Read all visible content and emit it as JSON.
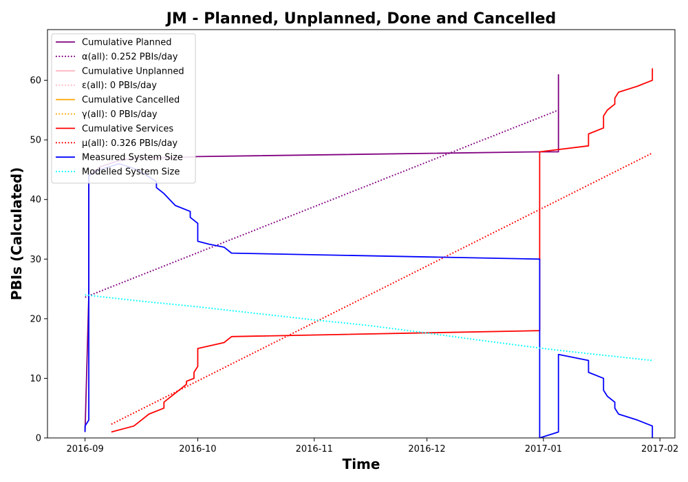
{
  "chart_data": {
    "type": "line",
    "title": "JM - Planned, Unplanned, Done  and Cancelled",
    "xlabel": "Time",
    "ylabel": "PBIs (Calculated)",
    "xlim": [
      "2016-08-22",
      "2017-02-05"
    ],
    "ylim": [
      0,
      68.5
    ],
    "x_ticks": [
      "2016-09-01",
      "2016-10-01",
      "2016-11-01",
      "2016-12-01",
      "2017-01-01",
      "2017-02-01"
    ],
    "x_tick_labels": [
      "2016-09",
      "2016-10",
      "2016-11",
      "2016-12",
      "2017-01",
      "2017-02"
    ],
    "y_ticks": [
      0,
      10,
      20,
      30,
      40,
      50,
      60
    ],
    "grid": false,
    "legend_position": "top-left",
    "series": [
      {
        "name": "Cumulative Planned",
        "color": "#800080",
        "style": "solid",
        "x": [
          "2016-09-01",
          "2016-09-02",
          "2016-09-02",
          "2016-09-05",
          "2016-09-10",
          "2016-09-15",
          "2016-09-20",
          "2016-09-25",
          "2016-10-01",
          "2016-12-31",
          "2017-01-05",
          "2017-01-05",
          "2017-01-05"
        ],
        "y": [
          1,
          24,
          44,
          45.5,
          46.5,
          47,
          47,
          47,
          47.2,
          48,
          48,
          48,
          61
        ]
      },
      {
        "name": "α(all): 0.252 PBIs/day",
        "color": "#800080",
        "style": "dotted",
        "x": [
          "2016-09-01",
          "2017-01-05"
        ],
        "y": [
          23.6,
          55
        ]
      },
      {
        "name": "Cumulative Unplanned",
        "color": "#ffb6c1",
        "style": "solid",
        "x": [],
        "y": []
      },
      {
        "name": "ε(all): 0 PBIs/day",
        "color": "#ffb6c1",
        "style": "dotted",
        "x": [],
        "y": []
      },
      {
        "name": "Cumulative Cancelled",
        "color": "#ffa500",
        "style": "solid",
        "x": [],
        "y": []
      },
      {
        "name": "γ(all): 0 PBIs/day",
        "color": "#ffa500",
        "style": "dotted",
        "x": [],
        "y": []
      },
      {
        "name": "Cumulative Services",
        "color": "#ff0000",
        "style": "solid",
        "x": [
          "2016-09-08",
          "2016-09-14",
          "2016-09-16",
          "2016-09-18",
          "2016-09-22",
          "2016-09-22",
          "2016-09-23",
          "2016-09-28",
          "2016-09-28",
          "2016-09-30",
          "2016-09-30",
          "2016-10-01",
          "2016-10-01",
          "2016-10-08",
          "2016-10-10",
          "2016-12-31",
          "2016-12-31",
          "2016-12-31",
          "2017-01-13",
          "2017-01-13",
          "2017-01-17",
          "2017-01-17",
          "2017-01-18",
          "2017-01-20",
          "2017-01-20",
          "2017-01-21",
          "2017-01-26",
          "2017-01-30",
          "2017-01-30"
        ],
        "y": [
          1,
          2,
          3,
          4,
          5,
          6,
          6.5,
          9,
          9.5,
          10,
          11,
          12,
          15,
          16,
          17,
          18,
          31,
          48,
          49,
          51,
          52,
          54,
          55,
          56,
          57,
          58,
          59,
          60,
          62
        ]
      },
      {
        "name": "μ(all): 0.326 PBIs/day",
        "color": "#ff0000",
        "style": "dotted",
        "x": [
          "2016-09-08",
          "2017-01-30"
        ],
        "y": [
          2.3,
          47.8
        ]
      },
      {
        "name": "Measured System Size",
        "color": "#0000ff",
        "style": "solid",
        "x": [
          "2016-09-01",
          "2016-09-01",
          "2016-09-02",
          "2016-09-02",
          "2016-09-02",
          "2016-09-02",
          "2016-09-02",
          "2016-09-05",
          "2016-09-10",
          "2016-09-15",
          "2016-09-20",
          "2016-09-20",
          "2016-09-22",
          "2016-09-25",
          "2016-09-29",
          "2016-09-29",
          "2016-10-01",
          "2016-10-01",
          "2016-10-04",
          "2016-10-08",
          "2016-10-10",
          "2016-12-31",
          "2016-12-31",
          "2017-01-05",
          "2017-01-05",
          "2017-01-13",
          "2017-01-13",
          "2017-01-17",
          "2017-01-17",
          "2017-01-18",
          "2017-01-20",
          "2017-01-20",
          "2017-01-21",
          "2017-01-26",
          "2017-01-30",
          "2017-01-30"
        ],
        "y": [
          1,
          2,
          3,
          9,
          10,
          24,
          44,
          45,
          46,
          45,
          43,
          42,
          41,
          39,
          38,
          37,
          36,
          33,
          32.5,
          32,
          31,
          30,
          0,
          1,
          14,
          13,
          11,
          10,
          8,
          7,
          6,
          5,
          4,
          3,
          2,
          0
        ]
      },
      {
        "name": "Modelled System Size",
        "color": "#00ffff",
        "style": "dotted",
        "x": [
          "2016-09-01",
          "2016-09-15",
          "2016-10-01",
          "2016-10-15",
          "2016-11-01",
          "2016-11-15",
          "2016-12-01",
          "2016-12-15",
          "2017-01-01",
          "2017-01-15",
          "2017-01-30"
        ],
        "y": [
          24,
          23,
          22,
          21,
          19.8,
          18.9,
          17.6,
          16.4,
          15,
          14,
          13
        ]
      }
    ]
  }
}
